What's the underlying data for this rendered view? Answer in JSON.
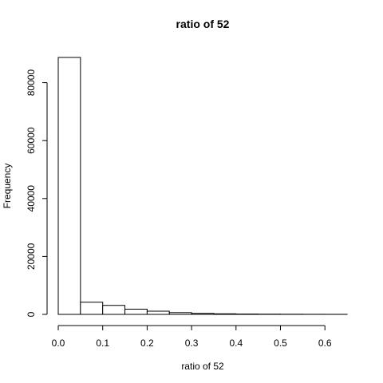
{
  "chart_data": {
    "type": "bar",
    "title": "ratio of 52",
    "xlabel": "ratio of 52",
    "ylabel": "Frequency",
    "bins": [
      [
        0.0,
        0.05
      ],
      [
        0.05,
        0.1
      ],
      [
        0.1,
        0.15
      ],
      [
        0.15,
        0.2
      ],
      [
        0.2,
        0.25
      ],
      [
        0.25,
        0.3
      ],
      [
        0.3,
        0.35
      ],
      [
        0.35,
        0.4
      ],
      [
        0.4,
        0.45
      ],
      [
        0.45,
        0.5
      ],
      [
        0.5,
        0.55
      ],
      [
        0.55,
        0.6
      ],
      [
        0.6,
        0.65
      ]
    ],
    "values": [
      88700,
      4200,
      3100,
      1800,
      1100,
      600,
      350,
      200,
      120,
      80,
      50,
      30,
      20
    ],
    "xlim": [
      0.0,
      0.65
    ],
    "ylim": [
      0,
      88700
    ],
    "x_ticks": [
      0.0,
      0.1,
      0.2,
      0.3,
      0.4,
      0.5,
      0.6
    ],
    "x_tick_labels": [
      "0.0",
      "0.1",
      "0.2",
      "0.3",
      "0.4",
      "0.5",
      "0.6"
    ],
    "y_ticks": [
      0,
      20000,
      40000,
      60000,
      80000
    ],
    "y_tick_labels": [
      "0",
      "20000",
      "40000",
      "60000",
      "80000"
    ],
    "grid": false,
    "colors": {
      "bar_fill": "#ffffff",
      "bar_stroke": "#000000"
    }
  }
}
